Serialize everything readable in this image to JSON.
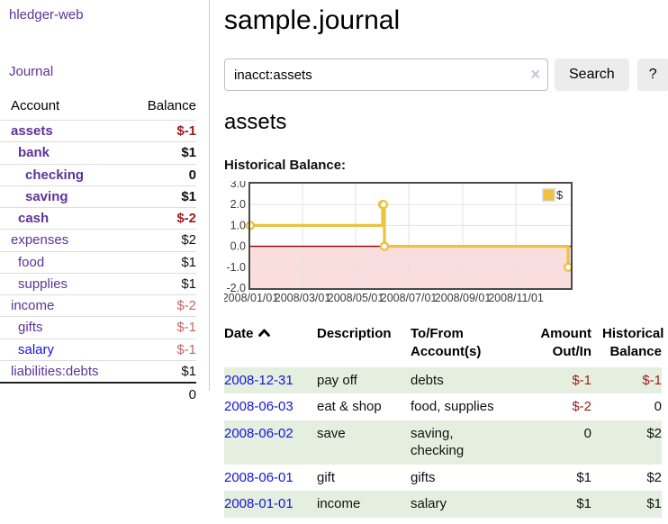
{
  "colors": {
    "link_purple": "#5e3397",
    "link_blue": "#1414e0",
    "negative_strong": "#9f1d20",
    "negative_soft": "#c26868",
    "row_shade_green": "#e5efdf",
    "chart_line_gold": "#edc240",
    "chart_negative_region": "#fadede",
    "chart_zero_line": "#8b0000",
    "button_gray": "#ececec"
  },
  "sidebar": {
    "app_title": "hledger-web",
    "journal_link": "Journal",
    "columns": [
      "Account",
      "Balance"
    ],
    "accounts": [
      {
        "name": "assets",
        "indent": 1,
        "bold": true,
        "balance": "$-1",
        "tone": "neg-strong"
      },
      {
        "name": "bank",
        "indent": 2,
        "bold": true,
        "balance": "$1",
        "tone": "pos"
      },
      {
        "name": "checking",
        "indent": 3,
        "bold": true,
        "balance": "0",
        "tone": "pos"
      },
      {
        "name": "saving",
        "indent": 3,
        "bold": true,
        "balance": "$1",
        "tone": "pos"
      },
      {
        "name": "cash",
        "indent": 2,
        "bold": true,
        "balance": "$-2",
        "tone": "neg-strong"
      },
      {
        "name": "expenses",
        "indent": 1,
        "bold": false,
        "balance": "$2",
        "tone": "pos"
      },
      {
        "name": "food",
        "indent": 2,
        "bold": false,
        "balance": "$1",
        "tone": "pos"
      },
      {
        "name": "supplies",
        "indent": 2,
        "bold": false,
        "balance": "$1",
        "tone": "pos"
      },
      {
        "name": "income",
        "indent": 1,
        "bold": false,
        "balance": "$-2",
        "tone": "neg-soft"
      },
      {
        "name": "gifts",
        "indent": 2,
        "bold": false,
        "balance": "$-1",
        "tone": "neg-soft"
      },
      {
        "name": "salary",
        "indent": 2,
        "bold": false,
        "link": "blue",
        "balance": "$-1",
        "tone": "neg-soft"
      },
      {
        "name": "liabilities:debts",
        "indent": 1,
        "bold": false,
        "balance": "$1",
        "tone": "pos"
      }
    ],
    "total": "0"
  },
  "main": {
    "title": "sample.journal",
    "search": {
      "value": "inacct:assets",
      "button_label": "Search",
      "help_label": "?",
      "clear_label": "×"
    },
    "account_heading": "assets"
  },
  "chart_data": {
    "type": "line",
    "title": "Historical Balance:",
    "series": [
      {
        "name": "$",
        "steps": true,
        "points": [
          [
            "2008-01-01",
            1
          ],
          [
            "2008-06-01",
            2
          ],
          [
            "2008-06-02",
            2
          ],
          [
            "2008-06-03",
            0
          ],
          [
            "2008-12-31",
            -1
          ]
        ]
      }
    ],
    "ylim": [
      -2,
      3
    ],
    "yticks": [
      "3.0",
      "2.0",
      "1.0",
      "0.0",
      "-1.0",
      "-2.0"
    ],
    "xticks": [
      {
        "label": "2008/01/01",
        "date": "2008-01-01"
      },
      {
        "label": "2008/03/01",
        "date": "2008-03-01"
      },
      {
        "label": "2008/05/01",
        "date": "2008-05-01"
      },
      {
        "label": "2008/07/01",
        "date": "2008-07-01"
      },
      {
        "label": "2008/09/01",
        "date": "2008-09-01"
      },
      {
        "label": "2008/11/01",
        "date": "2008-11-01"
      }
    ],
    "x_domain": [
      "2008-01-01",
      "2009-01-03"
    ],
    "grid": true,
    "legend_position": "top-right",
    "negative_region_shaded": true
  },
  "table": {
    "columns": {
      "date": "Date",
      "description": "Description",
      "accounts": "To/From Account(s)",
      "amount": "Amount Out/In",
      "historical": "Historical Balance"
    },
    "sort": {
      "column": "date",
      "direction": "ascending"
    },
    "rows": [
      {
        "date": "2008-12-31",
        "description": "pay off",
        "accounts": "debts",
        "amount": "$-1",
        "amount_negative": true,
        "historical": "$-1",
        "historical_negative": true,
        "shaded": true
      },
      {
        "date": "2008-06-03",
        "description": "eat & shop",
        "accounts": "food, supplies",
        "amount": "$-2",
        "amount_negative": true,
        "historical": "0",
        "historical_negative": false,
        "shaded": false
      },
      {
        "date": "2008-06-02",
        "description": "save",
        "accounts": "saving,\nchecking",
        "amount": "0",
        "amount_negative": false,
        "historical": "$2",
        "historical_negative": false,
        "shaded": true
      },
      {
        "date": "2008-06-01",
        "description": "gift",
        "accounts": "gifts",
        "amount": "$1",
        "amount_negative": false,
        "historical": "$2",
        "historical_negative": false,
        "shaded": false
      },
      {
        "date": "2008-01-01",
        "description": "income",
        "accounts": "salary",
        "amount": "$1",
        "amount_negative": false,
        "historical": "$1",
        "historical_negative": false,
        "shaded": true
      }
    ]
  }
}
